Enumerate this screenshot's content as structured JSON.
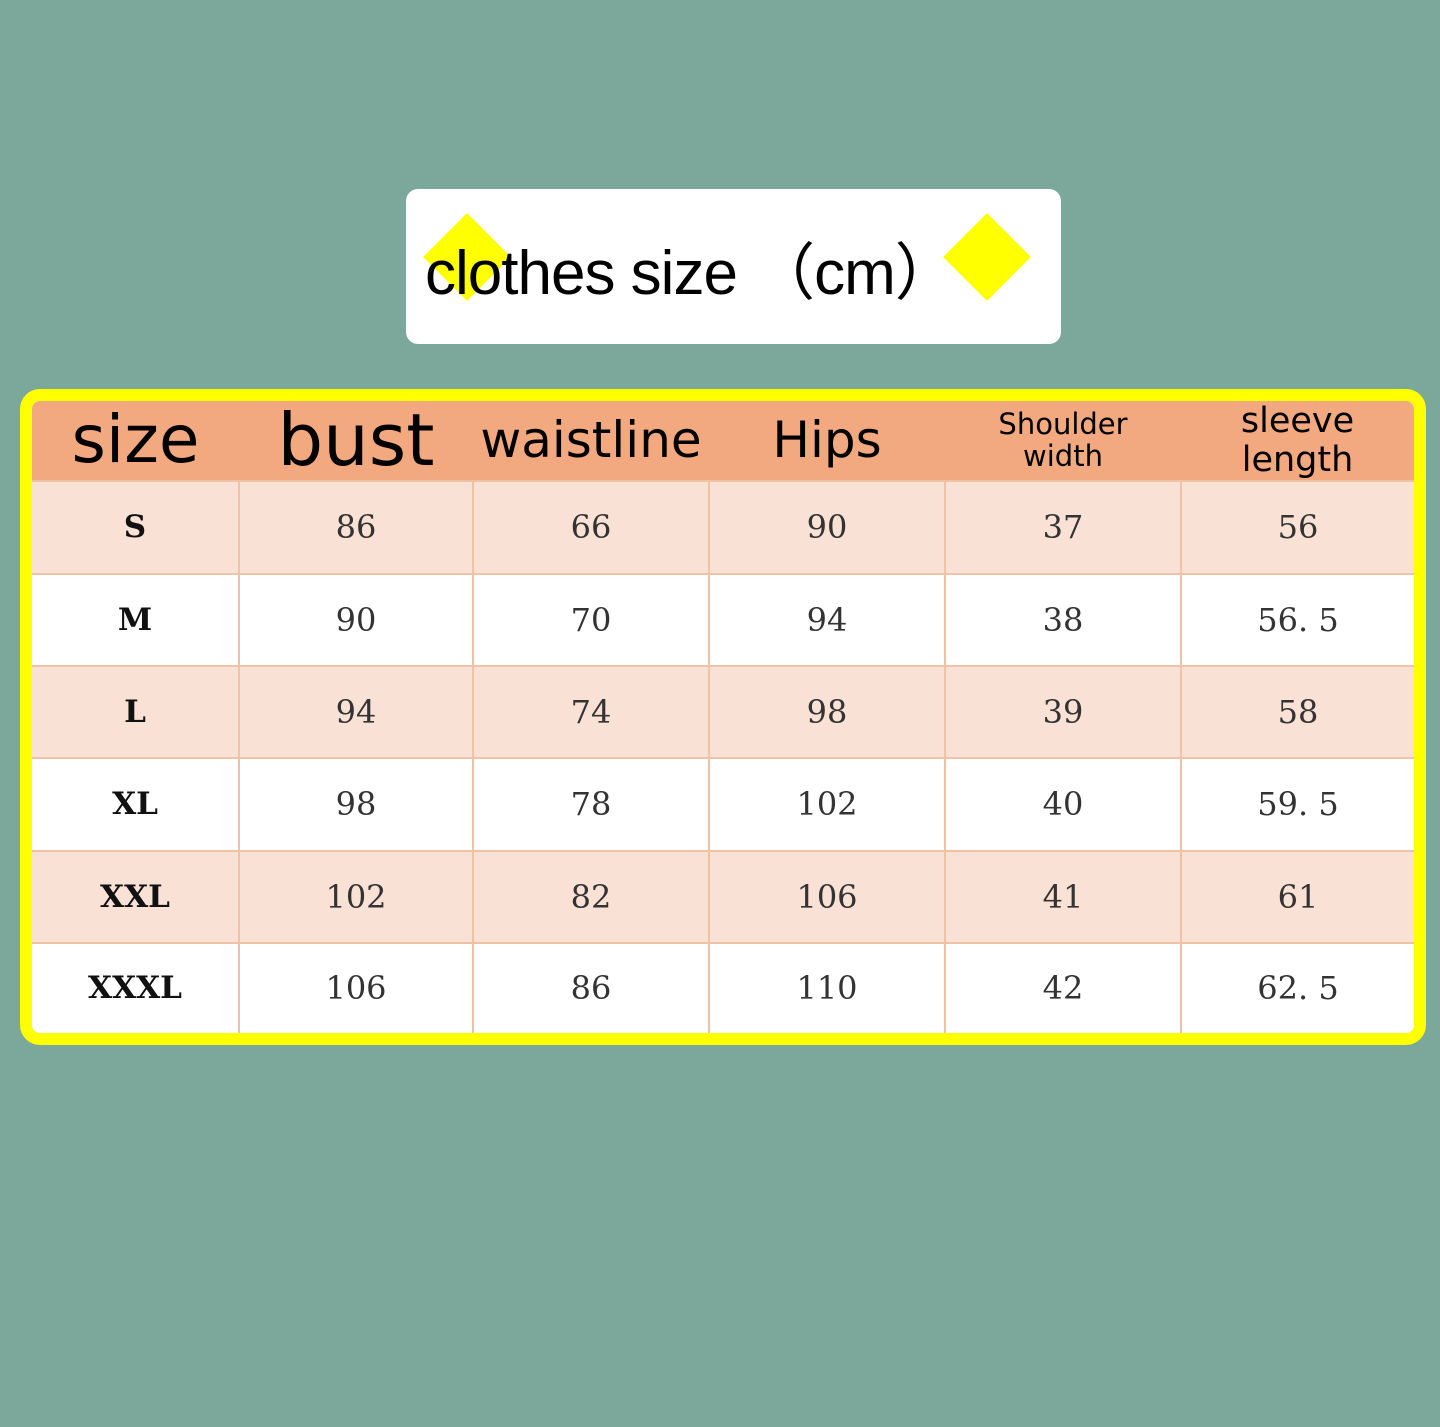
{
  "title": "clothes size （cm）",
  "colors": {
    "background": "#7ba89b",
    "frame": "#ffff00",
    "header": "#f3a97f",
    "row_alt": "#f9e1d5"
  },
  "table": {
    "headers": [
      "size",
      "bust",
      "waistline",
      "Hips",
      "Shoulder width",
      "sleeve length"
    ],
    "rows": [
      [
        "S",
        "86",
        "66",
        "90",
        "37",
        "56"
      ],
      [
        "M",
        "90",
        "70",
        "94",
        "38",
        "56. 5"
      ],
      [
        "L",
        "94",
        "74",
        "98",
        "39",
        "58"
      ],
      [
        "XL",
        "98",
        "78",
        "102",
        "40",
        "59. 5"
      ],
      [
        "XXL",
        "102",
        "82",
        "106",
        "41",
        "61"
      ],
      [
        "XXXL",
        "106",
        "86",
        "110",
        "42",
        "62. 5"
      ]
    ]
  }
}
